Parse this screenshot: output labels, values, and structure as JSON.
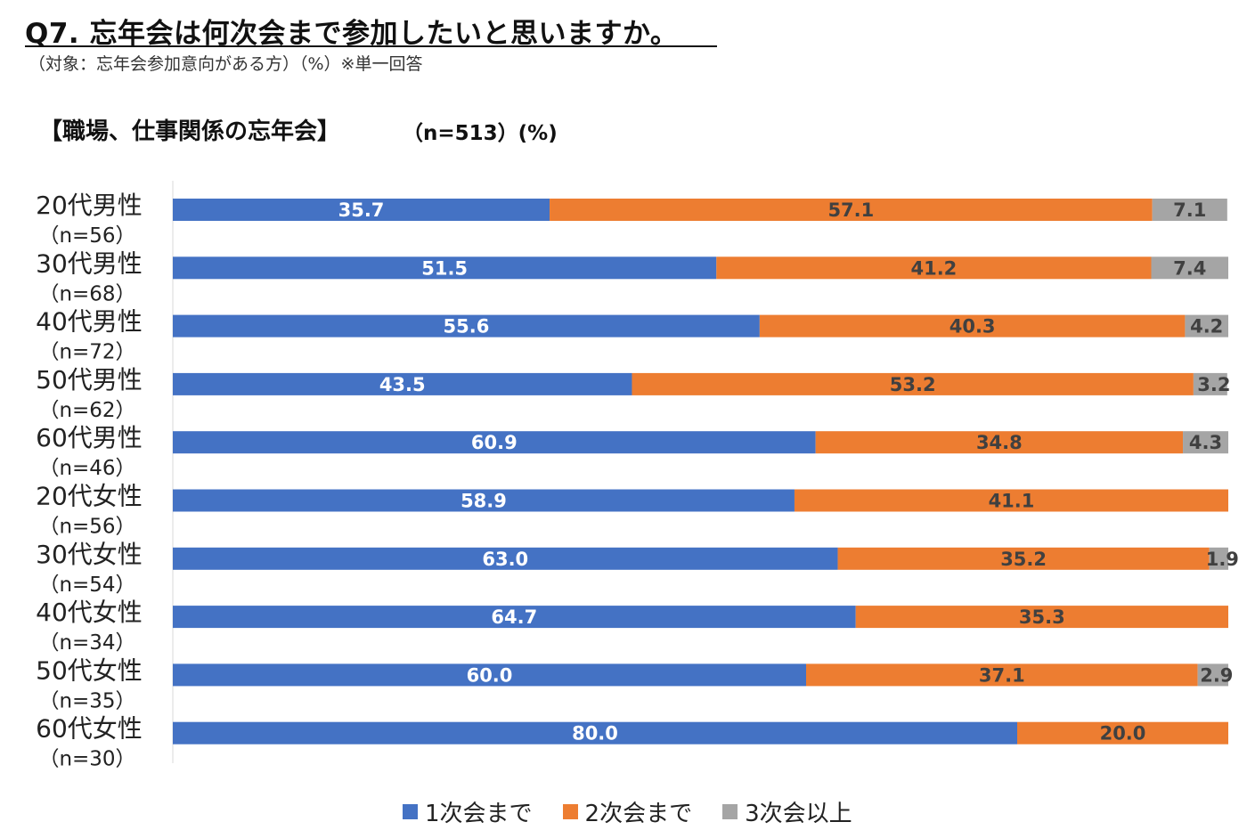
{
  "header": {
    "question": "Q7. 忘年会は何次会まで参加したいと思いますか。",
    "note": "（対象：忘年会参加意向がある方）（%）※単一回答"
  },
  "chart_data": {
    "type": "bar",
    "orientation": "horizontal",
    "stacked": true,
    "title": "【職場、仕事関係の忘年会】",
    "subtitle": "（n=513）(%)",
    "categories": [
      "20代男性",
      "30代男性",
      "40代男性",
      "50代男性",
      "60代男性",
      "20代女性",
      "30代女性",
      "40代女性",
      "50代女性",
      "60代女性"
    ],
    "sample_sizes": [
      "（n=56）",
      "（n=68）",
      "（n=72）",
      "（n=62）",
      "（n=46）",
      "（n=56）",
      "（n=54）",
      "（n=34）",
      "（n=35）",
      "（n=30）"
    ],
    "series": [
      {
        "name": "1次会まで",
        "color": "#4472C4",
        "label_color": "#FFFFFF",
        "values": [
          35.7,
          51.5,
          55.6,
          43.5,
          60.9,
          58.9,
          63.0,
          64.7,
          60.0,
          80.0
        ]
      },
      {
        "name": "2次会まで",
        "color": "#ED7D31",
        "label_color": "#404040",
        "values": [
          57.1,
          41.2,
          40.3,
          53.2,
          34.8,
          41.1,
          35.2,
          35.3,
          37.1,
          20.0
        ]
      },
      {
        "name": "3次会以上",
        "color": "#A5A5A5",
        "label_color": "#404040",
        "values": [
          7.1,
          7.4,
          4.2,
          3.2,
          4.3,
          null,
          1.9,
          null,
          2.9,
          null
        ]
      }
    ],
    "xlim": [
      0,
      100
    ],
    "legend_position": "bottom",
    "grid": false
  }
}
